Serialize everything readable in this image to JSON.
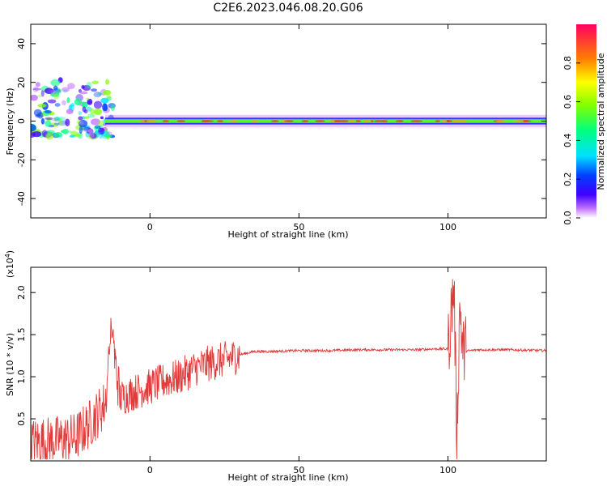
{
  "title": "C2E6.2023.046.08.20.G06",
  "colorbar": {
    "label": "Normalized spectral amplitude",
    "ticks": [
      "0.0",
      "0.2",
      "0.4",
      "0.6",
      "0.8"
    ],
    "range": [
      0,
      1
    ]
  },
  "chart_data": [
    {
      "type": "heatmap",
      "xlabel": "Height of straight line (km)",
      "ylabel": "Frequency (Hz)",
      "xlim": [
        -40,
        133
      ],
      "ylim": [
        -50,
        50
      ],
      "x_ticks": [
        "0",
        "50",
        "100"
      ],
      "y_ticks": [
        "40",
        "20",
        "0",
        "-20",
        "-40"
      ],
      "band": {
        "center_hz": 0,
        "half_width_hz": 2,
        "x_range": [
          -15,
          133
        ],
        "peak_amplitude": 0.95
      },
      "noisy_region": {
        "x_range": [
          -40,
          -12
        ],
        "freq_range_hz": [
          -8,
          22
        ]
      }
    },
    {
      "type": "line",
      "xlabel": "Height of straight line (km)",
      "ylabel": "SNR (10 * v/v)",
      "scale_label": "(x10",
      "scale_exp": "4",
      "xlim": [
        -40,
        133
      ],
      "ylim": [
        0,
        2.3
      ],
      "x_ticks": [
        "0",
        "50",
        "100"
      ],
      "y_ticks": [
        "0.5",
        "1.0",
        "1.5",
        "2.0"
      ],
      "series": [
        {
          "color": "#e03a3a",
          "x": [
            -40,
            -30,
            -25,
            -20,
            -15,
            -13,
            -10,
            -5,
            0,
            5,
            10,
            15,
            20,
            25,
            30,
            35,
            40,
            50,
            60,
            70,
            80,
            90,
            95,
            100,
            102,
            103,
            104,
            105,
            110,
            120,
            133
          ],
          "y": [
            0.22,
            0.25,
            0.28,
            0.45,
            0.68,
            1.5,
            0.75,
            0.82,
            0.88,
            0.95,
            1.0,
            1.1,
            1.16,
            1.2,
            1.26,
            1.3,
            1.3,
            1.31,
            1.31,
            1.32,
            1.32,
            1.32,
            1.33,
            1.33,
            2.1,
            0.3,
            1.9,
            1.3,
            1.32,
            1.32,
            1.31
          ]
        }
      ]
    }
  ]
}
